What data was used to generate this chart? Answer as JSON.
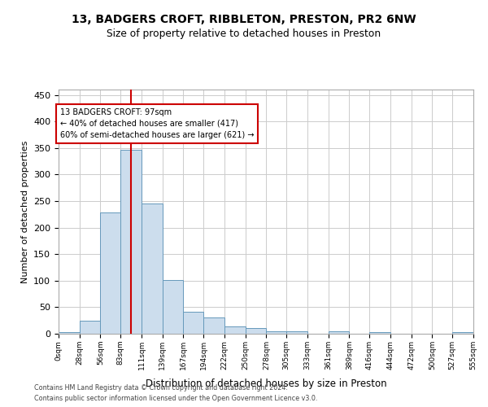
{
  "title_line1": "13, BADGERS CROFT, RIBBLETON, PRESTON, PR2 6NW",
  "title_line2": "Size of property relative to detached houses in Preston",
  "xlabel": "Distribution of detached houses by size in Preston",
  "ylabel": "Number of detached properties",
  "bar_color": "#ccdded",
  "bar_edge_color": "#6699bb",
  "grid_color": "#cccccc",
  "annotation_box_color": "#cc0000",
  "vline_color": "#cc0000",
  "property_size": 97,
  "annotation_line1": "13 BADGERS CROFT: 97sqm",
  "annotation_line2": "← 40% of detached houses are smaller (417)",
  "annotation_line3": "60% of semi-detached houses are larger (621) →",
  "footer_line1": "Contains HM Land Registry data © Crown copyright and database right 2024.",
  "footer_line2": "Contains public sector information licensed under the Open Government Licence v3.0.",
  "bin_edges": [
    0,
    28,
    56,
    83,
    111,
    139,
    167,
    194,
    222,
    250,
    278,
    305,
    333,
    361,
    389,
    416,
    444,
    472,
    500,
    527,
    555
  ],
  "bin_labels": [
    "0sqm",
    "28sqm",
    "56sqm",
    "83sqm",
    "111sqm",
    "139sqm",
    "167sqm",
    "194sqm",
    "222sqm",
    "250sqm",
    "278sqm",
    "305sqm",
    "333sqm",
    "361sqm",
    "389sqm",
    "416sqm",
    "444sqm",
    "472sqm",
    "500sqm",
    "527sqm",
    "555sqm"
  ],
  "bar_heights": [
    3,
    25,
    228,
    347,
    246,
    101,
    41,
    31,
    14,
    10,
    5,
    5,
    0,
    4,
    0,
    3,
    0,
    0,
    0,
    3
  ],
  "ylim": [
    0,
    460
  ],
  "yticks": [
    0,
    50,
    100,
    150,
    200,
    250,
    300,
    350,
    400,
    450
  ]
}
